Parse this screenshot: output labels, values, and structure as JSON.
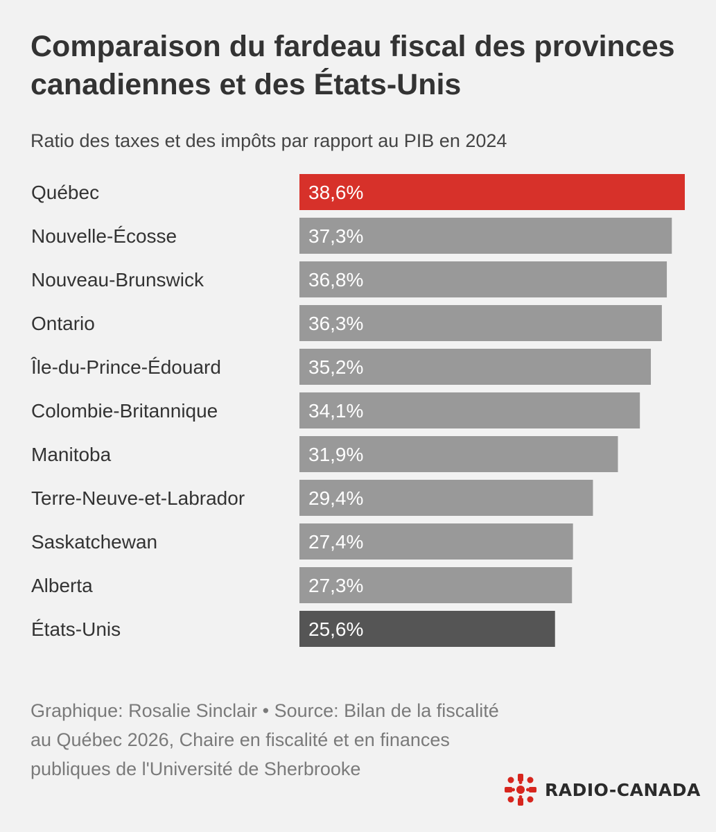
{
  "header": {
    "title": "Comparaison du fardeau fiscal des provinces canadiennes et des États-Unis",
    "subtitle": "Ratio des taxes et des impôts par rapport au PIB en 2024"
  },
  "footer": {
    "credit": "Graphique: Rosalie Sinclair • Source: Bilan de la fiscalité au Québec 2026, Chaire en fiscalité et en finances publiques de l'Université de Sherbrooke"
  },
  "logo": {
    "text": "RADIO-CANADA",
    "icon": "radio-canada-gem-icon",
    "color": "#d7261e"
  },
  "colors": {
    "highlight": "#d7312a",
    "default": "#999999",
    "comparison": "#555555"
  },
  "chart_data": {
    "type": "bar",
    "orientation": "horizontal",
    "title": "Comparaison du fardeau fiscal des provinces canadiennes et des États-Unis",
    "subtitle": "Ratio des taxes et des impôts par rapport au PIB en 2024",
    "categories": [
      "Québec",
      "Nouvelle-Écosse",
      "Nouveau-Brunswick",
      "Ontario",
      "Île-du-Prince-Édouard",
      "Colombie-Britannique",
      "Manitoba",
      "Terre-Neuve-et-Labrador",
      "Saskatchewan",
      "Alberta",
      "États-Unis"
    ],
    "values": [
      38.6,
      37.3,
      36.8,
      36.3,
      35.2,
      34.1,
      31.9,
      29.4,
      27.4,
      27.3,
      25.6
    ],
    "value_labels": [
      "38,6%",
      "37,3%",
      "36,8%",
      "36,3%",
      "35,2%",
      "34,1%",
      "31,9%",
      "29,4%",
      "27,4%",
      "27,3%",
      "25,6%"
    ],
    "bar_colors": [
      "#d7312a",
      "#999999",
      "#999999",
      "#999999",
      "#999999",
      "#999999",
      "#999999",
      "#999999",
      "#999999",
      "#999999",
      "#555555"
    ],
    "xlim": [
      0,
      38.6
    ],
    "grid": false,
    "legend": "none"
  }
}
